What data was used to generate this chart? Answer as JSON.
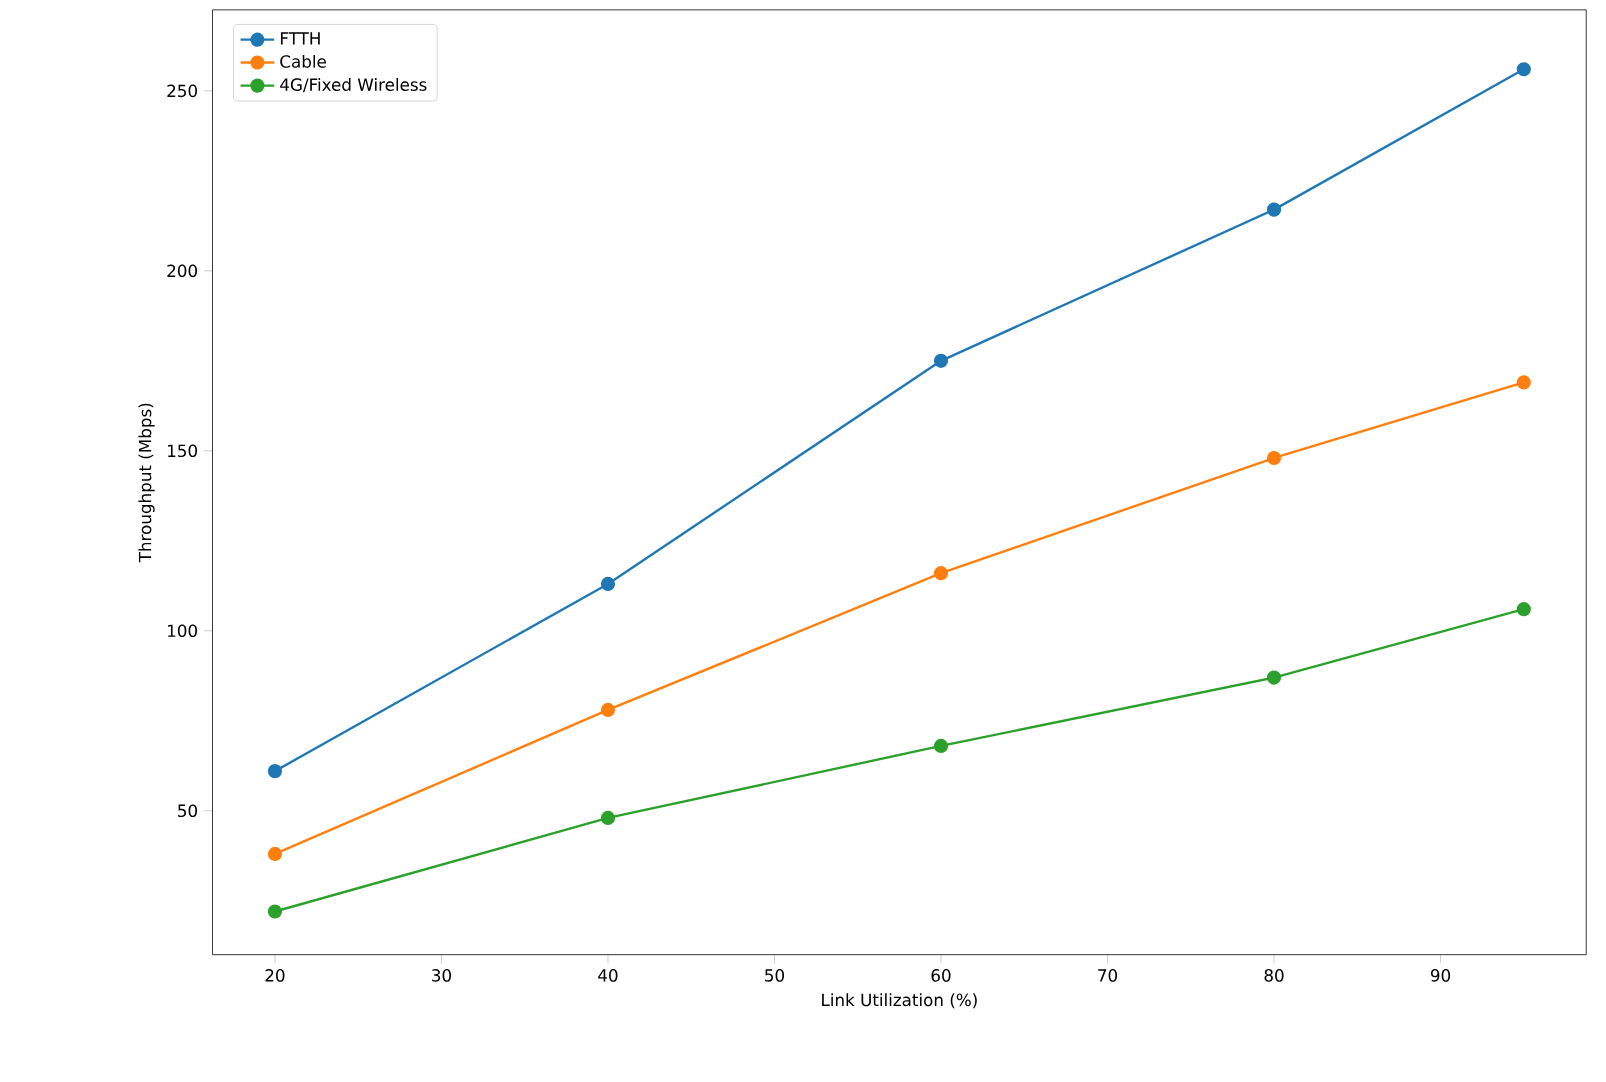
{
  "chart_data": {
    "type": "line",
    "xlabel": "Link Utilization (%)",
    "ylabel": "Throughput (Mbps)",
    "x": [
      20,
      40,
      60,
      80,
      95
    ],
    "series": [
      {
        "name": "FTTH",
        "color": "#1f77b4",
        "values": [
          61,
          113,
          175,
          217,
          256
        ]
      },
      {
        "name": "Cable",
        "color": "#ff7f0e",
        "values": [
          38,
          78,
          116,
          148,
          169
        ]
      },
      {
        "name": "4G/Fixed Wireless",
        "color": "#2ca02c",
        "values": [
          22,
          48,
          68,
          87,
          106
        ]
      }
    ],
    "xlim": [
      16.25,
      98.75
    ],
    "ylim": [
      10,
      272.5
    ],
    "xticks": [
      20,
      30,
      40,
      50,
      60,
      70,
      80,
      90
    ],
    "yticks": [
      50,
      100,
      150,
      200,
      250
    ],
    "legend": "top left",
    "marker": "circle",
    "line_style": "solid",
    "grid": false
  }
}
